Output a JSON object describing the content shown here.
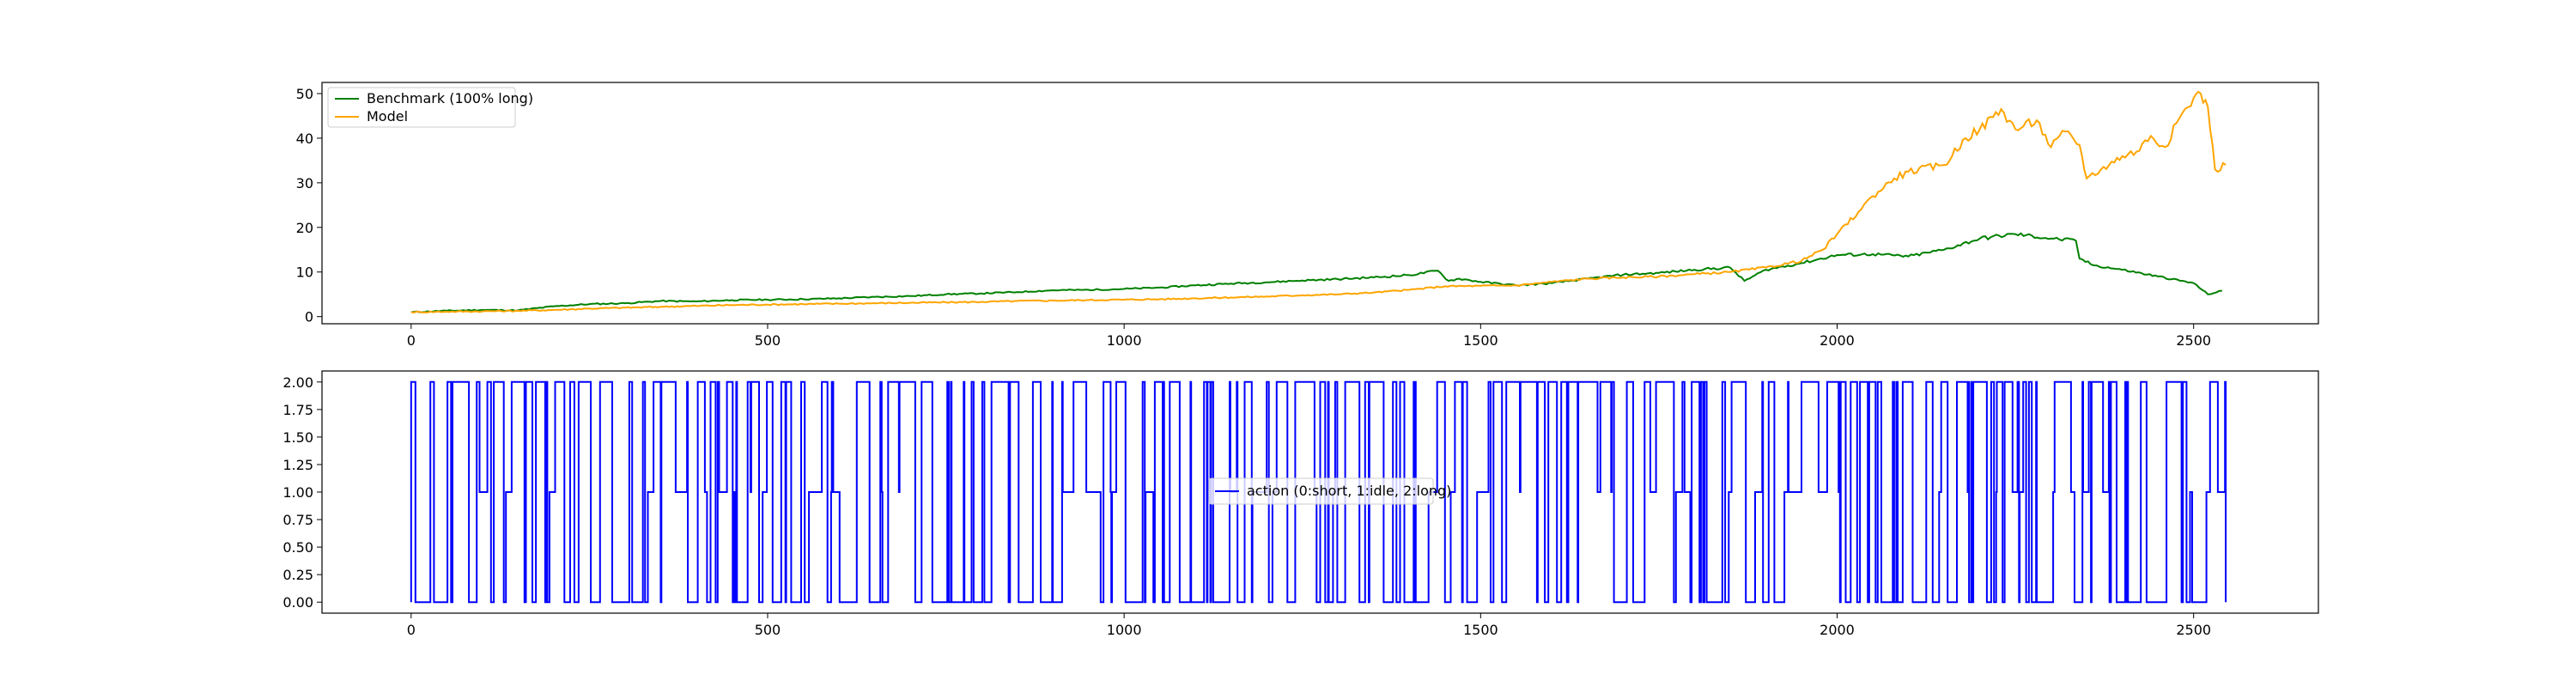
{
  "chart_data": [
    {
      "type": "line",
      "title": "",
      "xlabel": "",
      "ylabel": "",
      "xlim": [
        -125,
        2675
      ],
      "ylim": [
        -1.6,
        52.5
      ],
      "x_ticks": [
        0,
        500,
        1000,
        1500,
        2000,
        2500
      ],
      "y_ticks": [
        0,
        10,
        20,
        30,
        40,
        50
      ],
      "grid": false,
      "legend_position": "upper left",
      "series": [
        {
          "name": "Benchmark (100% long)",
          "color": "#008000",
          "x": [
            0,
            50,
            100,
            150,
            200,
            250,
            300,
            350,
            400,
            450,
            500,
            550,
            600,
            650,
            700,
            750,
            800,
            850,
            900,
            950,
            1000,
            1050,
            1100,
            1150,
            1200,
            1250,
            1300,
            1350,
            1400,
            1440,
            1455,
            1470,
            1500,
            1550,
            1600,
            1650,
            1700,
            1750,
            1800,
            1850,
            1870,
            1900,
            1950,
            2000,
            2050,
            2100,
            2150,
            2200,
            2250,
            2300,
            2335,
            2340,
            2360,
            2400,
            2450,
            2500,
            2520,
            2540
          ],
          "y": [
            1,
            1.3,
            1.5,
            1.4,
            2.3,
            2.8,
            3.0,
            3.5,
            3.4,
            3.7,
            3.8,
            3.9,
            4.1,
            4.4,
            4.6,
            5.0,
            5.2,
            5.5,
            5.9,
            6.0,
            6.2,
            6.5,
            7.0,
            7.4,
            7.7,
            8.1,
            8.4,
            8.8,
            9.3,
            10.3,
            8.0,
            8.5,
            7.8,
            7.0,
            7.5,
            8.5,
            9.4,
            9.8,
            10.5,
            11.0,
            8.0,
            10.5,
            12.0,
            13.8,
            14.0,
            13.5,
            15.0,
            17.5,
            18.5,
            17.5,
            17.0,
            13.0,
            11.5,
            10.5,
            9.0,
            7.5,
            5.0,
            5.8
          ]
        },
        {
          "name": "Model",
          "color": "#FFA500",
          "x": [
            0,
            50,
            100,
            150,
            200,
            250,
            300,
            350,
            400,
            450,
            500,
            550,
            600,
            650,
            700,
            750,
            800,
            850,
            900,
            950,
            1000,
            1050,
            1100,
            1150,
            1200,
            1250,
            1300,
            1350,
            1400,
            1450,
            1500,
            1550,
            1600,
            1650,
            1700,
            1750,
            1800,
            1850,
            1900,
            1950,
            1980,
            2000,
            2030,
            2050,
            2080,
            2100,
            2150,
            2180,
            2200,
            2230,
            2250,
            2280,
            2300,
            2320,
            2340,
            2350,
            2370,
            2400,
            2420,
            2440,
            2460,
            2480,
            2500,
            2510,
            2520,
            2530,
            2545
          ],
          "y": [
            1,
            1.1,
            1.2,
            1.3,
            1.5,
            1.8,
            2.0,
            2.2,
            2.4,
            2.6,
            2.7,
            2.8,
            2.9,
            3.0,
            3.1,
            3.2,
            3.3,
            3.5,
            3.6,
            3.7,
            3.8,
            3.9,
            4.1,
            4.3,
            4.5,
            4.8,
            5.0,
            5.4,
            6.0,
            6.8,
            6.9,
            7.0,
            7.8,
            8.5,
            8.8,
            9.0,
            9.5,
            10.0,
            11.0,
            12.5,
            15.0,
            18.5,
            23.5,
            27.0,
            31.0,
            32.5,
            34.0,
            40.0,
            42.0,
            46.5,
            42.0,
            44.0,
            38.0,
            41.5,
            38.5,
            31.0,
            33.0,
            36.0,
            37.0,
            40.5,
            38.0,
            44.5,
            49.0,
            50.0,
            47.0,
            33.0,
            34.0
          ]
        }
      ]
    },
    {
      "type": "line",
      "title": "",
      "xlabel": "",
      "ylabel": "",
      "xlim": [
        -125,
        2675
      ],
      "ylim": [
        -0.1,
        2.1
      ],
      "x_ticks": [
        0,
        500,
        1000,
        1500,
        2000,
        2500
      ],
      "y_ticks": [
        0.0,
        0.25,
        0.5,
        0.75,
        1.0,
        1.25,
        1.5,
        1.75,
        2.0
      ],
      "y_tick_labels": [
        "0.00",
        "0.25",
        "0.50",
        "0.75",
        "1.00",
        "1.25",
        "1.50",
        "1.75",
        "2.00"
      ],
      "grid": false,
      "legend_position": "center",
      "series": [
        {
          "name": "action (0:short, 1:idle, 2:long)",
          "color": "#0000FF",
          "x_start": 0,
          "x_end": 2545,
          "values_description": "step series switching rapidly between 0, 1 and 2"
        }
      ]
    }
  ]
}
